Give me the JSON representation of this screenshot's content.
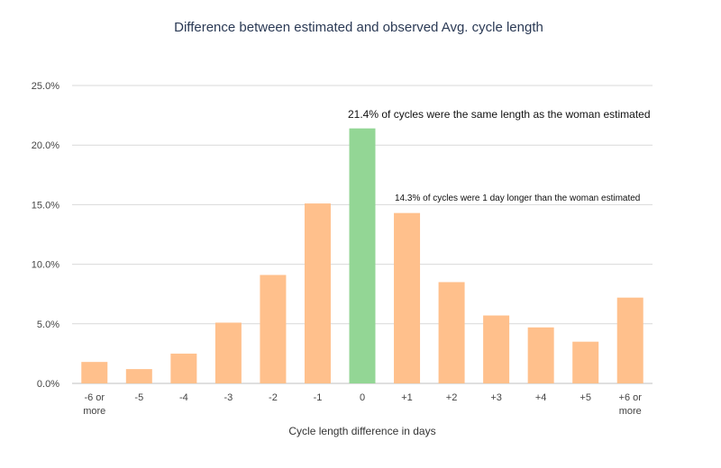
{
  "chart_data": {
    "type": "bar",
    "title": "Difference between estimated and observed Avg. cycle length",
    "xlabel": "Cycle length difference in days",
    "ylabel": "",
    "categories": [
      [
        "-6 or",
        "more"
      ],
      [
        "-5"
      ],
      [
        "-4"
      ],
      [
        "-3"
      ],
      [
        "-2"
      ],
      [
        "-1"
      ],
      [
        "0"
      ],
      [
        "+1"
      ],
      [
        "+2"
      ],
      [
        "+3"
      ],
      [
        "+4"
      ],
      [
        "+5"
      ],
      [
        "+6 or",
        "more"
      ]
    ],
    "values": [
      1.8,
      1.2,
      2.5,
      5.1,
      9.1,
      15.1,
      21.4,
      14.3,
      8.5,
      5.7,
      4.7,
      3.5,
      7.2
    ],
    "highlight_index": 6,
    "colors": {
      "bar": "#ffc08c",
      "highlight": "#93d695"
    },
    "ylim": [
      0,
      25
    ],
    "yticks": [
      "0.0%",
      "5.0%",
      "10.0%",
      "15.0%",
      "20.0%",
      "25.0%"
    ],
    "grid": true,
    "annotations": [
      {
        "text": "21.4% of cycles were the same length as the woman estimated"
      },
      {
        "text": "14.3% of cycles were 1 day longer than the woman estimated"
      }
    ]
  }
}
